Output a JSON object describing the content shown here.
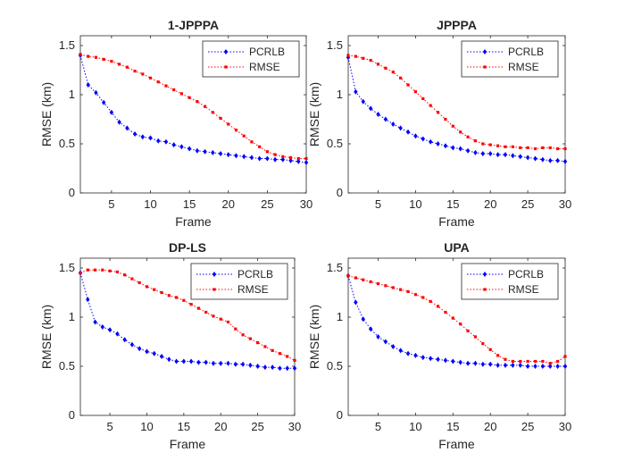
{
  "chart_data": [
    {
      "type": "line",
      "title": "1-JPPPA",
      "xlabel": "Frame",
      "ylabel": "RMSE (km)",
      "xlim": [
        1,
        30
      ],
      "ylim": [
        0,
        1.6
      ],
      "xticks": [
        5,
        10,
        15,
        20,
        25,
        30
      ],
      "yticks": [
        0,
        0.5,
        1,
        1.5
      ],
      "xtick_labels": [
        "5",
        "10",
        "15",
        "20",
        "25",
        "30"
      ],
      "ytick_labels": [
        "0",
        "0.5",
        "1",
        "1.5"
      ],
      "legend_position": "top-right",
      "x": [
        1,
        2,
        3,
        4,
        5,
        6,
        7,
        8,
        9,
        10,
        11,
        12,
        13,
        14,
        15,
        16,
        17,
        18,
        19,
        20,
        21,
        22,
        23,
        24,
        25,
        26,
        27,
        28,
        29,
        30
      ],
      "series": [
        {
          "name": "PCRLB",
          "color": "#0000ff",
          "marker": "diamond",
          "values": [
            1.4,
            1.1,
            1.02,
            0.92,
            0.82,
            0.72,
            0.66,
            0.6,
            0.57,
            0.56,
            0.53,
            0.52,
            0.49,
            0.47,
            0.45,
            0.43,
            0.42,
            0.41,
            0.4,
            0.39,
            0.38,
            0.37,
            0.36,
            0.35,
            0.35,
            0.34,
            0.34,
            0.33,
            0.32,
            0.31
          ]
        },
        {
          "name": "RMSE",
          "color": "#ff0000",
          "marker": "square",
          "values": [
            1.41,
            1.39,
            1.38,
            1.36,
            1.34,
            1.31,
            1.28,
            1.24,
            1.21,
            1.17,
            1.13,
            1.09,
            1.05,
            1.01,
            0.97,
            0.93,
            0.88,
            0.82,
            0.76,
            0.7,
            0.64,
            0.58,
            0.52,
            0.47,
            0.42,
            0.39,
            0.37,
            0.36,
            0.35,
            0.35
          ]
        }
      ]
    },
    {
      "type": "line",
      "title": "JPPPA",
      "xlabel": "Frame",
      "ylabel": "RMSE (km)",
      "xlim": [
        1,
        30
      ],
      "ylim": [
        0,
        1.6
      ],
      "xticks": [
        5,
        10,
        15,
        20,
        25,
        30
      ],
      "yticks": [
        0,
        0.5,
        1,
        1.5
      ],
      "xtick_labels": [
        "5",
        "10",
        "15",
        "20",
        "25",
        "30"
      ],
      "ytick_labels": [
        "0",
        "0.5",
        "1",
        "1.5"
      ],
      "legend_position": "top-right",
      "x": [
        1,
        2,
        3,
        4,
        5,
        6,
        7,
        8,
        9,
        10,
        11,
        12,
        13,
        14,
        15,
        16,
        17,
        18,
        19,
        20,
        21,
        22,
        23,
        24,
        25,
        26,
        27,
        28,
        29,
        30
      ],
      "series": [
        {
          "name": "PCRLB",
          "color": "#0000ff",
          "marker": "diamond",
          "values": [
            1.38,
            1.03,
            0.93,
            0.86,
            0.8,
            0.75,
            0.7,
            0.66,
            0.62,
            0.58,
            0.55,
            0.52,
            0.5,
            0.48,
            0.46,
            0.45,
            0.43,
            0.41,
            0.4,
            0.4,
            0.39,
            0.39,
            0.38,
            0.37,
            0.36,
            0.35,
            0.34,
            0.33,
            0.33,
            0.32
          ]
        },
        {
          "name": "RMSE",
          "color": "#ff0000",
          "marker": "square",
          "values": [
            1.4,
            1.39,
            1.37,
            1.35,
            1.31,
            1.27,
            1.23,
            1.17,
            1.1,
            1.03,
            0.96,
            0.89,
            0.82,
            0.75,
            0.68,
            0.62,
            0.57,
            0.53,
            0.5,
            0.49,
            0.48,
            0.47,
            0.47,
            0.46,
            0.46,
            0.45,
            0.46,
            0.46,
            0.45,
            0.45
          ]
        }
      ]
    },
    {
      "type": "line",
      "title": "DP-LS",
      "xlabel": "Frame",
      "ylabel": "RMSE (km)",
      "xlim": [
        1,
        30
      ],
      "ylim": [
        0,
        1.6
      ],
      "xticks": [
        5,
        10,
        15,
        20,
        25,
        30
      ],
      "yticks": [
        0,
        0.5,
        1,
        1.5
      ],
      "xtick_labels": [
        "5",
        "10",
        "15",
        "20",
        "25",
        "30"
      ],
      "ytick_labels": [
        "0",
        "0.5",
        "1",
        "1.5"
      ],
      "legend_position": "top-right",
      "x": [
        1,
        2,
        3,
        4,
        5,
        6,
        7,
        8,
        9,
        10,
        11,
        12,
        13,
        14,
        15,
        16,
        17,
        18,
        19,
        20,
        21,
        22,
        23,
        24,
        25,
        26,
        27,
        28,
        29,
        30
      ],
      "series": [
        {
          "name": "PCRLB",
          "color": "#0000ff",
          "marker": "diamond",
          "values": [
            1.45,
            1.18,
            0.95,
            0.9,
            0.87,
            0.83,
            0.77,
            0.72,
            0.68,
            0.65,
            0.63,
            0.6,
            0.57,
            0.55,
            0.55,
            0.55,
            0.54,
            0.54,
            0.53,
            0.53,
            0.53,
            0.52,
            0.52,
            0.51,
            0.5,
            0.49,
            0.49,
            0.48,
            0.48,
            0.48
          ]
        },
        {
          "name": "RMSE",
          "color": "#ff0000",
          "marker": "square",
          "values": [
            1.45,
            1.48,
            1.48,
            1.48,
            1.47,
            1.46,
            1.43,
            1.39,
            1.35,
            1.31,
            1.28,
            1.25,
            1.22,
            1.2,
            1.17,
            1.13,
            1.09,
            1.05,
            1.01,
            0.98,
            0.95,
            0.88,
            0.82,
            0.78,
            0.74,
            0.7,
            0.66,
            0.63,
            0.6,
            0.56
          ]
        }
      ]
    },
    {
      "type": "line",
      "title": "UPA",
      "xlabel": "Frame",
      "ylabel": "RMSE (km)",
      "xlim": [
        1,
        30
      ],
      "ylim": [
        0,
        1.6
      ],
      "xticks": [
        5,
        10,
        15,
        20,
        25,
        30
      ],
      "yticks": [
        0,
        0.5,
        1,
        1.5
      ],
      "xtick_labels": [
        "5",
        "10",
        "15",
        "20",
        "25",
        "30"
      ],
      "ytick_labels": [
        "0",
        "0.5",
        "1",
        "1.5"
      ],
      "legend_position": "top-right",
      "x": [
        1,
        2,
        3,
        4,
        5,
        6,
        7,
        8,
        9,
        10,
        11,
        12,
        13,
        14,
        15,
        16,
        17,
        18,
        19,
        20,
        21,
        22,
        23,
        24,
        25,
        26,
        27,
        28,
        29,
        30
      ],
      "series": [
        {
          "name": "PCRLB",
          "color": "#0000ff",
          "marker": "diamond",
          "values": [
            1.42,
            1.15,
            0.98,
            0.88,
            0.8,
            0.75,
            0.7,
            0.66,
            0.63,
            0.61,
            0.59,
            0.58,
            0.57,
            0.56,
            0.55,
            0.54,
            0.53,
            0.53,
            0.52,
            0.52,
            0.51,
            0.51,
            0.51,
            0.51,
            0.5,
            0.5,
            0.5,
            0.5,
            0.5,
            0.5
          ]
        },
        {
          "name": "RMSE",
          "color": "#ff0000",
          "marker": "square",
          "values": [
            1.42,
            1.4,
            1.38,
            1.36,
            1.34,
            1.32,
            1.3,
            1.28,
            1.26,
            1.23,
            1.2,
            1.16,
            1.11,
            1.05,
            0.99,
            0.93,
            0.86,
            0.8,
            0.73,
            0.67,
            0.61,
            0.57,
            0.55,
            0.55,
            0.55,
            0.55,
            0.55,
            0.53,
            0.55,
            0.6
          ]
        }
      ]
    }
  ]
}
